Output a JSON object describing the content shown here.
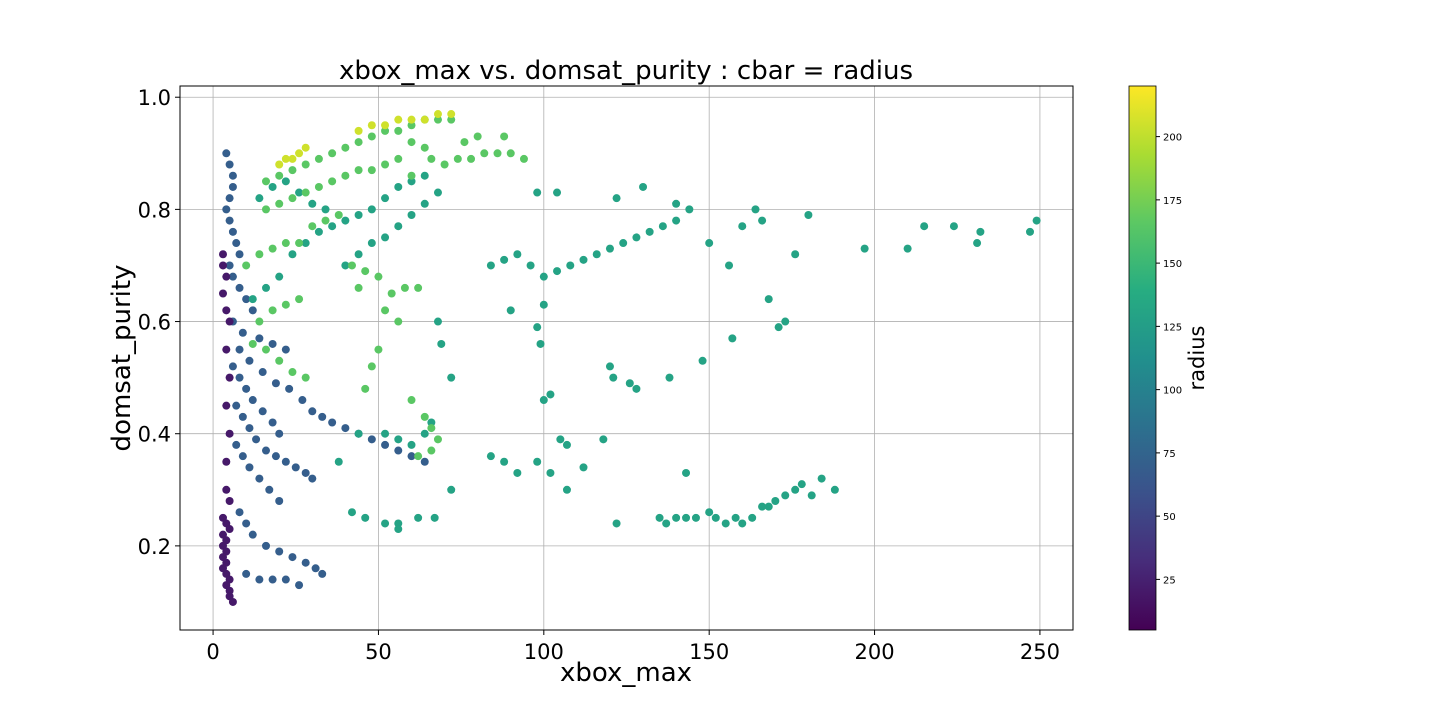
{
  "chart_data": {
    "type": "scatter",
    "title": "xbox_max vs. domsat_purity : cbar = radius",
    "xlabel": "xbox_max",
    "ylabel": "domsat_purity",
    "xlim": [
      -10,
      260
    ],
    "ylim": [
      0.05,
      1.02
    ],
    "xticks": [
      0,
      50,
      100,
      150,
      200,
      250
    ],
    "yticks": [
      0.2,
      0.4,
      0.6,
      0.8,
      1.0
    ],
    "ytick_labels": [
      "0.2",
      "0.4",
      "0.6",
      "0.8",
      "1.0"
    ],
    "grid": true,
    "colorbar": {
      "label": "radius",
      "colormap": "viridis",
      "range": [
        5,
        220
      ],
      "ticks": [
        25,
        50,
        75,
        100,
        125,
        150,
        175,
        200
      ]
    },
    "series": [
      {
        "points": [
          [
            4,
            0.9
          ],
          [
            5,
            0.88
          ],
          [
            6,
            0.86
          ],
          [
            6,
            0.84
          ],
          [
            5,
            0.82
          ],
          [
            4,
            0.8
          ],
          [
            5,
            0.78
          ],
          [
            6,
            0.76
          ],
          [
            7,
            0.74
          ],
          [
            8,
            0.72
          ],
          [
            5,
            0.7
          ],
          [
            6,
            0.68
          ],
          [
            8,
            0.66
          ],
          [
            10,
            0.64
          ],
          [
            12,
            0.62
          ],
          [
            6,
            0.6
          ],
          [
            9,
            0.58
          ],
          [
            14,
            0.57
          ],
          [
            18,
            0.56
          ],
          [
            22,
            0.55
          ],
          [
            6,
            0.52
          ],
          [
            8,
            0.5
          ],
          [
            10,
            0.48
          ],
          [
            12,
            0.46
          ],
          [
            15,
            0.44
          ],
          [
            18,
            0.42
          ],
          [
            20,
            0.4
          ],
          [
            7,
            0.38
          ],
          [
            9,
            0.36
          ],
          [
            11,
            0.34
          ],
          [
            14,
            0.32
          ],
          [
            17,
            0.3
          ],
          [
            20,
            0.28
          ],
          [
            8,
            0.26
          ],
          [
            10,
            0.24
          ],
          [
            12,
            0.22
          ],
          [
            16,
            0.2
          ],
          [
            20,
            0.19
          ],
          [
            24,
            0.18
          ],
          [
            28,
            0.17
          ],
          [
            31,
            0.16
          ],
          [
            33,
            0.15
          ],
          [
            10,
            0.15
          ],
          [
            14,
            0.14
          ],
          [
            18,
            0.14
          ],
          [
            22,
            0.14
          ],
          [
            26,
            0.13
          ],
          [
            7,
            0.45
          ],
          [
            9,
            0.43
          ],
          [
            11,
            0.41
          ],
          [
            13,
            0.39
          ],
          [
            16,
            0.37
          ],
          [
            19,
            0.36
          ],
          [
            22,
            0.35
          ],
          [
            25,
            0.34
          ],
          [
            28,
            0.33
          ],
          [
            30,
            0.32
          ],
          [
            8,
            0.55
          ],
          [
            11,
            0.53
          ],
          [
            15,
            0.51
          ],
          [
            19,
            0.49
          ],
          [
            23,
            0.48
          ],
          [
            27,
            0.46
          ],
          [
            30,
            0.44
          ],
          [
            33,
            0.43
          ],
          [
            36,
            0.42
          ],
          [
            40,
            0.41
          ],
          [
            44,
            0.4
          ],
          [
            48,
            0.39
          ],
          [
            52,
            0.38
          ],
          [
            56,
            0.37
          ],
          [
            60,
            0.36
          ],
          [
            64,
            0.35
          ]
        ]
      },
      {
        "points": [
          [
            3,
            0.72
          ],
          [
            3,
            0.7
          ],
          [
            4,
            0.68
          ],
          [
            3,
            0.25
          ],
          [
            4,
            0.24
          ],
          [
            5,
            0.23
          ],
          [
            3,
            0.22
          ],
          [
            4,
            0.21
          ],
          [
            3,
            0.2
          ],
          [
            4,
            0.19
          ],
          [
            3,
            0.18
          ],
          [
            4,
            0.17
          ],
          [
            3,
            0.16
          ],
          [
            4,
            0.15
          ],
          [
            5,
            0.14
          ],
          [
            4,
            0.13
          ],
          [
            5,
            0.12
          ],
          [
            5,
            0.11
          ],
          [
            6,
            0.1
          ],
          [
            4,
            0.3
          ],
          [
            5,
            0.28
          ],
          [
            4,
            0.35
          ],
          [
            5,
            0.4
          ],
          [
            4,
            0.45
          ],
          [
            5,
            0.5
          ],
          [
            4,
            0.55
          ],
          [
            5,
            0.6
          ],
          [
            4,
            0.62
          ],
          [
            3,
            0.65
          ]
        ]
      },
      {
        "points": [
          [
            40,
            0.7
          ],
          [
            44,
            0.72
          ],
          [
            48,
            0.74
          ],
          [
            52,
            0.75
          ],
          [
            56,
            0.77
          ],
          [
            60,
            0.79
          ],
          [
            64,
            0.81
          ],
          [
            68,
            0.83
          ],
          [
            60,
            0.85
          ],
          [
            64,
            0.86
          ],
          [
            56,
            0.84
          ],
          [
            52,
            0.82
          ],
          [
            48,
            0.8
          ],
          [
            44,
            0.79
          ],
          [
            40,
            0.78
          ],
          [
            36,
            0.77
          ],
          [
            32,
            0.76
          ],
          [
            28,
            0.74
          ],
          [
            24,
            0.72
          ],
          [
            20,
            0.68
          ],
          [
            16,
            0.66
          ],
          [
            12,
            0.64
          ],
          [
            14,
            0.82
          ],
          [
            18,
            0.84
          ],
          [
            22,
            0.85
          ],
          [
            26,
            0.83
          ],
          [
            30,
            0.81
          ],
          [
            34,
            0.8
          ],
          [
            84,
            0.7
          ],
          [
            88,
            0.71
          ],
          [
            92,
            0.72
          ],
          [
            96,
            0.7
          ],
          [
            100,
            0.68
          ],
          [
            104,
            0.69
          ],
          [
            108,
            0.7
          ],
          [
            112,
            0.71
          ],
          [
            116,
            0.72
          ],
          [
            120,
            0.73
          ],
          [
            124,
            0.74
          ],
          [
            128,
            0.75
          ],
          [
            132,
            0.76
          ],
          [
            136,
            0.77
          ],
          [
            140,
            0.78
          ],
          [
            144,
            0.8
          ],
          [
            98,
            0.83
          ],
          [
            104,
            0.83
          ],
          [
            122,
            0.82
          ],
          [
            130,
            0.84
          ],
          [
            140,
            0.81
          ],
          [
            150,
            0.74
          ],
          [
            156,
            0.7
          ],
          [
            160,
            0.77
          ],
          [
            164,
            0.8
          ],
          [
            166,
            0.78
          ],
          [
            176,
            0.72
          ],
          [
            180,
            0.79
          ],
          [
            197,
            0.73
          ],
          [
            210,
            0.73
          ],
          [
            215,
            0.77
          ],
          [
            224,
            0.77
          ],
          [
            231,
            0.74
          ],
          [
            232,
            0.76
          ],
          [
            247,
            0.76
          ],
          [
            249,
            0.78
          ],
          [
            90,
            0.62
          ],
          [
            98,
            0.59
          ],
          [
            99,
            0.56
          ],
          [
            100,
            0.63
          ],
          [
            120,
            0.52
          ],
          [
            121,
            0.5
          ],
          [
            126,
            0.49
          ],
          [
            128,
            0.48
          ],
          [
            138,
            0.5
          ],
          [
            148,
            0.53
          ],
          [
            157,
            0.57
          ],
          [
            168,
            0.64
          ],
          [
            171,
            0.59
          ],
          [
            173,
            0.6
          ],
          [
            135,
            0.25
          ],
          [
            137,
            0.24
          ],
          [
            140,
            0.25
          ],
          [
            143,
            0.25
          ],
          [
            146,
            0.25
          ],
          [
            150,
            0.26
          ],
          [
            152,
            0.25
          ],
          [
            155,
            0.24
          ],
          [
            158,
            0.25
          ],
          [
            160,
            0.24
          ],
          [
            163,
            0.25
          ],
          [
            166,
            0.27
          ],
          [
            168,
            0.27
          ],
          [
            170,
            0.28
          ],
          [
            173,
            0.29
          ],
          [
            176,
            0.3
          ],
          [
            178,
            0.31
          ],
          [
            181,
            0.29
          ],
          [
            184,
            0.32
          ],
          [
            188,
            0.3
          ],
          [
            122,
            0.24
          ],
          [
            118,
            0.39
          ],
          [
            112,
            0.34
          ],
          [
            107,
            0.3
          ],
          [
            102,
            0.33
          ],
          [
            98,
            0.35
          ],
          [
            92,
            0.33
          ],
          [
            88,
            0.35
          ],
          [
            84,
            0.36
          ],
          [
            100,
            0.46
          ],
          [
            102,
            0.47
          ],
          [
            105,
            0.39
          ],
          [
            107,
            0.38
          ],
          [
            143,
            0.33
          ],
          [
            72,
            0.3
          ],
          [
            67,
            0.25
          ],
          [
            62,
            0.25
          ],
          [
            56,
            0.24
          ],
          [
            52,
            0.24
          ],
          [
            46,
            0.25
          ],
          [
            42,
            0.26
          ],
          [
            56,
            0.23
          ],
          [
            68,
            0.6
          ],
          [
            69,
            0.56
          ],
          [
            72,
            0.5
          ],
          [
            66,
            0.42
          ],
          [
            64,
            0.4
          ],
          [
            60,
            0.38
          ],
          [
            56,
            0.39
          ],
          [
            52,
            0.4
          ],
          [
            44,
            0.4
          ],
          [
            38,
            0.35
          ]
        ]
      },
      {
        "points": [
          [
            16,
            0.85
          ],
          [
            20,
            0.86
          ],
          [
            24,
            0.87
          ],
          [
            28,
            0.88
          ],
          [
            32,
            0.89
          ],
          [
            36,
            0.9
          ],
          [
            40,
            0.91
          ],
          [
            44,
            0.92
          ],
          [
            48,
            0.93
          ],
          [
            52,
            0.94
          ],
          [
            56,
            0.94
          ],
          [
            60,
            0.95
          ],
          [
            64,
            0.96
          ],
          [
            68,
            0.96
          ],
          [
            72,
            0.96
          ],
          [
            60,
            0.92
          ],
          [
            64,
            0.91
          ],
          [
            66,
            0.89
          ],
          [
            70,
            0.88
          ],
          [
            74,
            0.89
          ],
          [
            78,
            0.89
          ],
          [
            82,
            0.9
          ],
          [
            86,
            0.9
          ],
          [
            90,
            0.9
          ],
          [
            94,
            0.89
          ],
          [
            76,
            0.92
          ],
          [
            80,
            0.93
          ],
          [
            88,
            0.93
          ],
          [
            16,
            0.8
          ],
          [
            20,
            0.81
          ],
          [
            24,
            0.82
          ],
          [
            28,
            0.83
          ],
          [
            32,
            0.84
          ],
          [
            36,
            0.85
          ],
          [
            40,
            0.86
          ],
          [
            44,
            0.87
          ],
          [
            48,
            0.87
          ],
          [
            52,
            0.88
          ],
          [
            56,
            0.89
          ],
          [
            60,
            0.86
          ],
          [
            30,
            0.77
          ],
          [
            34,
            0.78
          ],
          [
            38,
            0.79
          ],
          [
            42,
            0.7
          ],
          [
            46,
            0.69
          ],
          [
            50,
            0.68
          ],
          [
            44,
            0.66
          ],
          [
            54,
            0.65
          ],
          [
            58,
            0.66
          ],
          [
            62,
            0.66
          ],
          [
            52,
            0.62
          ],
          [
            56,
            0.6
          ],
          [
            50,
            0.55
          ],
          [
            48,
            0.52
          ],
          [
            46,
            0.48
          ],
          [
            14,
            0.6
          ],
          [
            18,
            0.62
          ],
          [
            22,
            0.63
          ],
          [
            26,
            0.64
          ],
          [
            12,
            0.56
          ],
          [
            16,
            0.55
          ],
          [
            20,
            0.53
          ],
          [
            24,
            0.51
          ],
          [
            28,
            0.5
          ],
          [
            10,
            0.7
          ],
          [
            14,
            0.72
          ],
          [
            18,
            0.73
          ],
          [
            22,
            0.74
          ],
          [
            26,
            0.74
          ],
          [
            60,
            0.46
          ],
          [
            64,
            0.43
          ],
          [
            66,
            0.41
          ],
          [
            68,
            0.39
          ],
          [
            62,
            0.36
          ],
          [
            66,
            0.37
          ]
        ]
      },
      {
        "points": [
          [
            20,
            0.88
          ],
          [
            22,
            0.89
          ],
          [
            24,
            0.89
          ],
          [
            26,
            0.9
          ],
          [
            28,
            0.91
          ],
          [
            44,
            0.94
          ],
          [
            48,
            0.95
          ],
          [
            52,
            0.95
          ],
          [
            56,
            0.96
          ],
          [
            60,
            0.96
          ],
          [
            64,
            0.96
          ],
          [
            68,
            0.97
          ],
          [
            72,
            0.97
          ]
        ]
      }
    ]
  }
}
